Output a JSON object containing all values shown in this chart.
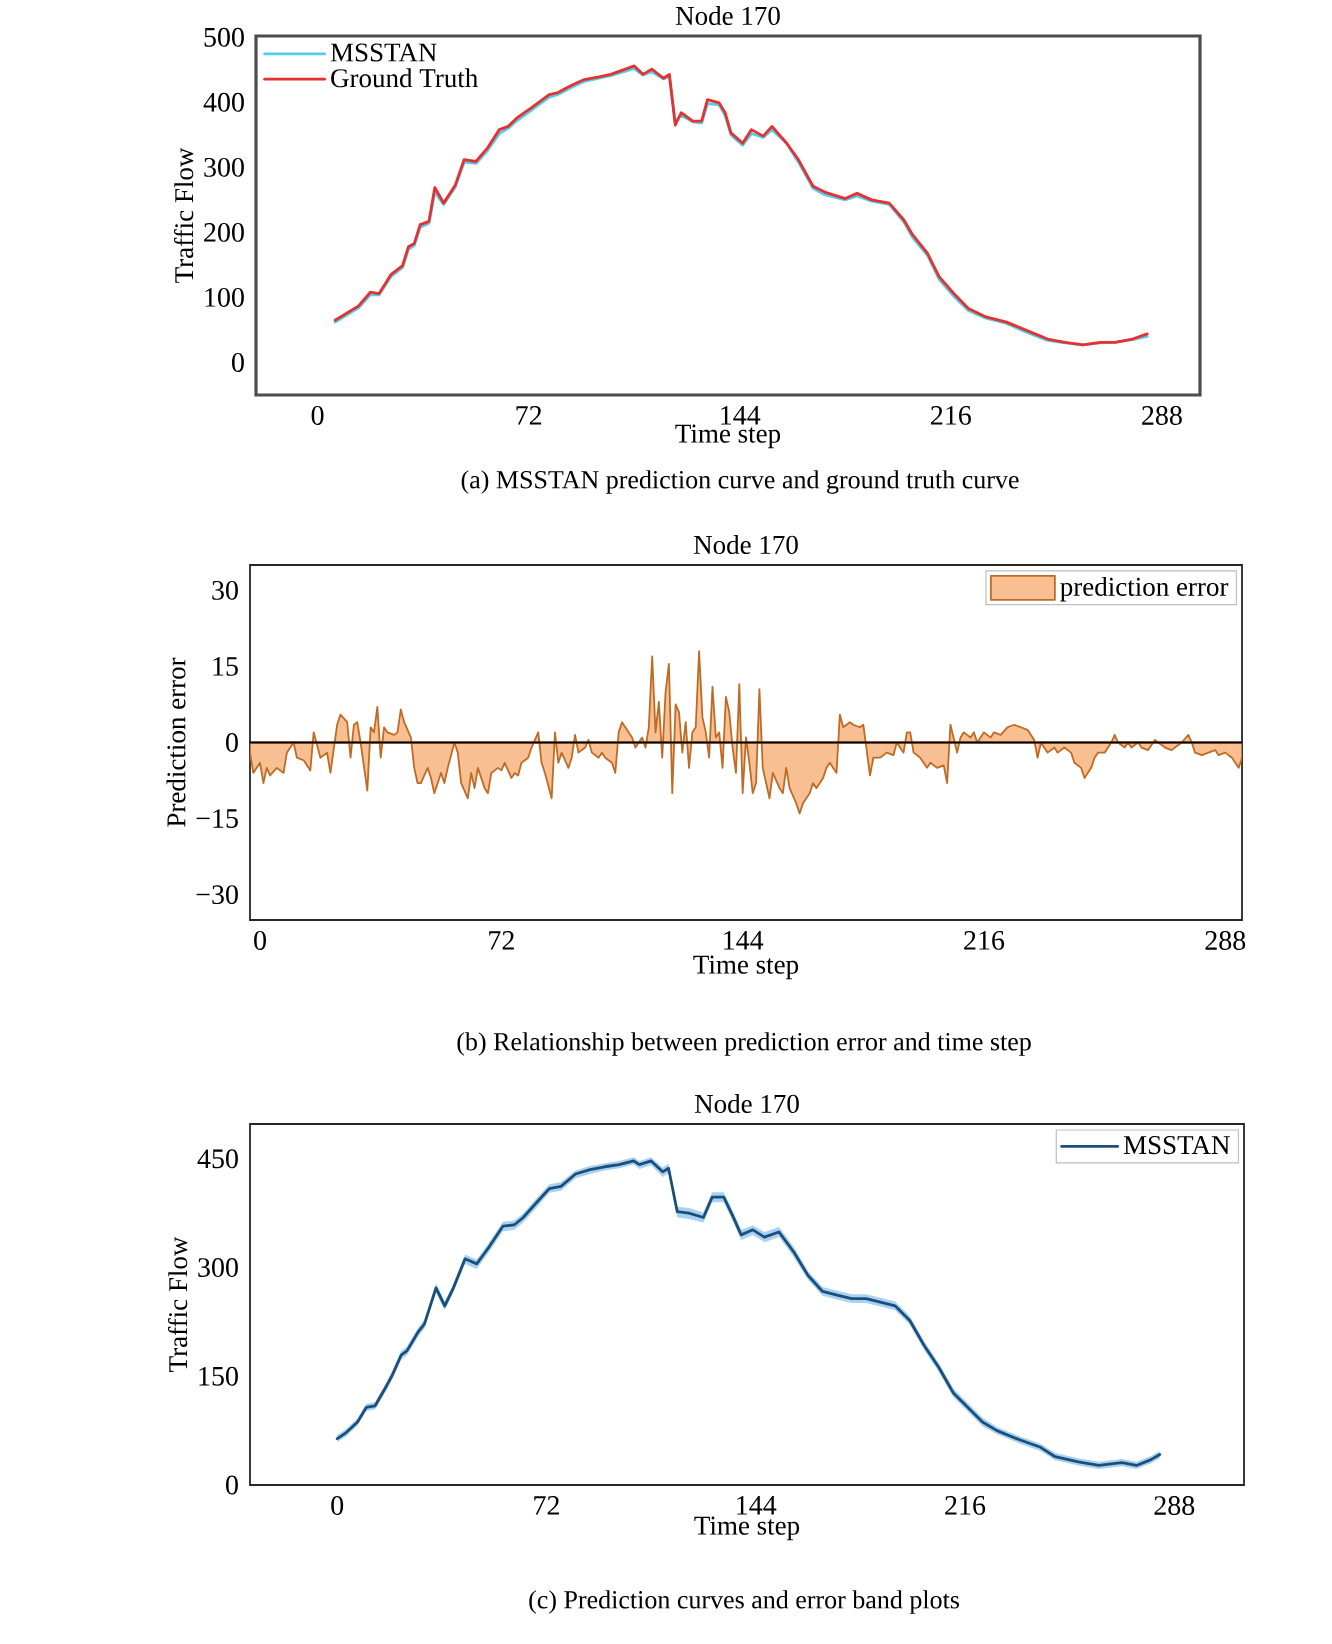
{
  "chart_data": [
    {
      "type": "line",
      "title": "Node 170",
      "xlabel": "Time step",
      "ylabel": "Traffic Flow",
      "annotations": [
        "(a) MSSTAN prediction curve and ground truth curve"
      ],
      "xlim": [
        -21,
        301
      ],
      "ylim": [
        -50,
        502
      ],
      "xticks": [
        0,
        72,
        144,
        216,
        288
      ],
      "yticks": [
        0,
        100,
        200,
        300,
        400,
        500
      ],
      "legend": "top left",
      "x": [
        6,
        14,
        18,
        21,
        25,
        29,
        31,
        33,
        35,
        38,
        40,
        43,
        47,
        50,
        54,
        58,
        62,
        65,
        68,
        73,
        79,
        82,
        87,
        91,
        96,
        100,
        105,
        108,
        111,
        114,
        118,
        120,
        122,
        124,
        128,
        131,
        133,
        137,
        139,
        141,
        145,
        148,
        152,
        155,
        160,
        164,
        169,
        173,
        180,
        184,
        189,
        195,
        200,
        203,
        208,
        212,
        217,
        222,
        228,
        235,
        242,
        249,
        255,
        261,
        267,
        272,
        278,
        283
      ],
      "series": [
        {
          "name": "MSSTAN",
          "color": "#4fcdf2",
          "values": [
            62,
            84,
            104,
            104,
            132,
            146,
            174,
            180,
            208,
            214,
            262,
            243,
            270,
            308,
            306,
            326,
            352,
            360,
            372,
            388,
            408,
            412,
            424,
            432,
            437,
            441,
            448,
            452,
            442,
            447,
            436,
            440,
            370,
            380,
            370,
            368,
            398,
            396,
            380,
            350,
            334,
            352,
            346,
            358,
            337,
            308,
            268,
            258,
            250,
            256,
            248,
            243,
            216,
            192,
            165,
            128,
            102,
            80,
            68,
            60,
            46,
            34,
            30,
            27,
            30,
            31,
            35,
            40
          ]
        },
        {
          "name": "Ground Truth",
          "color": "#e8302c",
          "values": [
            65,
            87,
            108,
            106,
            135,
            149,
            178,
            183,
            212,
            217,
            269,
            245,
            273,
            312,
            309,
            330,
            358,
            363,
            376,
            392,
            412,
            415,
            427,
            435,
            439,
            443,
            451,
            456,
            443,
            451,
            437,
            443,
            365,
            384,
            371,
            371,
            404,
            399,
            384,
            353,
            337,
            358,
            348,
            363,
            337,
            312,
            271,
            262,
            252,
            260,
            250,
            245,
            219,
            196,
            168,
            132,
            106,
            83,
            70,
            62,
            49,
            36,
            31,
            27,
            31,
            31,
            36,
            44
          ]
        }
      ]
    },
    {
      "type": "area",
      "title": "Node 170",
      "xlabel": "Time step",
      "ylabel": "Prediction error",
      "annotations": [
        "(b) Relationship between prediction error and time step"
      ],
      "xlim": [
        -3,
        293
      ],
      "ylim": [
        -35,
        35
      ],
      "xticks": [
        0,
        72,
        144,
        216,
        288
      ],
      "yticks": [
        {
          "value": -30,
          "label": "−30"
        },
        {
          "value": -15,
          "label": "−15"
        },
        0,
        15,
        30
      ],
      "legend": "top right",
      "ref_lines": [
        {
          "axis": "y",
          "value": 0,
          "color": "#000000"
        }
      ],
      "x": [
        -3,
        -2,
        0,
        1,
        2,
        3,
        5,
        7,
        8,
        10,
        11,
        13,
        15,
        16,
        18,
        20,
        21,
        23,
        24,
        26,
        27,
        28,
        29,
        30,
        32,
        33,
        34,
        35,
        36,
        37,
        38,
        40,
        41,
        42,
        43,
        45,
        46,
        47,
        48,
        50,
        51,
        52,
        54,
        55,
        56,
        58,
        59,
        60,
        62,
        63,
        64,
        65,
        67,
        68,
        69,
        71,
        72,
        73,
        75,
        76,
        77,
        78,
        80,
        81,
        83,
        84,
        85,
        87,
        88,
        89,
        90,
        92,
        93,
        94,
        95,
        97,
        98,
        99,
        101,
        102,
        103,
        105,
        106,
        107,
        108,
        110,
        111,
        112,
        114,
        115,
        116,
        117,
        118,
        119,
        120,
        121,
        122,
        123,
        124,
        125,
        126,
        127,
        128,
        129,
        130,
        131,
        132,
        133,
        134,
        135,
        136,
        137,
        138,
        139,
        140,
        141,
        142,
        143,
        144,
        145,
        146,
        147,
        148,
        149,
        150,
        151,
        152,
        153,
        155,
        156,
        157,
        158,
        160,
        161,
        162,
        164,
        165,
        166,
        168,
        169,
        170,
        172,
        173,
        174,
        176,
        177,
        179,
        180,
        182,
        183,
        185,
        187,
        189,
        190,
        192,
        193,
        194,
        195,
        197,
        199,
        200,
        202,
        204,
        205,
        206,
        208,
        209,
        210,
        212,
        213,
        214,
        216,
        218,
        219,
        221,
        223,
        225,
        227,
        229,
        231,
        232,
        233,
        235,
        237,
        238,
        240,
        242,
        243,
        245,
        246,
        248,
        249,
        250,
        252,
        254,
        255,
        256,
        258,
        259,
        260,
        262,
        263,
        265,
        267,
        268,
        270,
        272,
        273,
        275,
        277,
        278,
        279,
        281,
        283,
        285,
        286,
        288,
        290,
        291,
        292,
        293
      ],
      "series": [
        {
          "name": "prediction error",
          "color": "#f8c092",
          "values": [
            -2,
            -6,
            -4,
            -8,
            -5,
            -6.5,
            -5,
            -6,
            -2,
            0,
            -3,
            -3.5,
            -5.5,
            2,
            -3,
            -2,
            -6,
            3.5,
            5.5,
            4,
            -3,
            3.5,
            4,
            0,
            -9.5,
            3,
            2,
            7,
            -3,
            3,
            2,
            1.5,
            2,
            6.5,
            4,
            1,
            -5,
            -8,
            -8,
            -5,
            -7,
            -10,
            -6,
            -8,
            -5,
            0,
            -2,
            -8,
            -11,
            -6,
            -9,
            -5,
            -9,
            -10,
            -6,
            -5,
            -5.5,
            -4,
            -7,
            -6,
            -6.5,
            -4,
            -3,
            -1,
            2,
            -4,
            -6,
            -11,
            2,
            -4,
            -2,
            -5,
            -3,
            1.5,
            -2,
            -1,
            0.5,
            -2,
            -3,
            -2,
            -3,
            -4,
            -6,
            2,
            4,
            2,
            1,
            -1,
            1,
            -1,
            3,
            17,
            2,
            8,
            -3,
            10,
            15.5,
            -10,
            7.5,
            6,
            -2,
            4,
            -5,
            2,
            3,
            18,
            5,
            2,
            -3,
            11,
            1,
            2,
            -5,
            9,
            6,
            -1,
            -6,
            11.5,
            -10,
            1,
            -4,
            -10,
            -8,
            10.5,
            -5,
            -8,
            -11,
            -6,
            -9,
            -10,
            -5,
            -9,
            -12,
            -14,
            -12,
            -10,
            -8,
            -9,
            -7,
            -5,
            -4,
            -6,
            5.5,
            3,
            4,
            3.5,
            3,
            3.5,
            -6.5,
            -3,
            -3,
            -2,
            -2.5,
            0,
            -2,
            2,
            2,
            -2,
            -3,
            -5,
            -4,
            -5,
            -4.5,
            -8,
            3.5,
            -2,
            1,
            2,
            1,
            2,
            0,
            2,
            1,
            2,
            1.5,
            3,
            3.5,
            3,
            2.5,
            0.5,
            -3,
            0,
            -2,
            -1,
            -2,
            -1,
            -2,
            -4,
            -5,
            -7,
            -5,
            -3,
            -2,
            -2,
            0,
            1.5,
            0,
            -1,
            0,
            -1,
            0,
            -1,
            -1.5,
            0.5,
            0,
            -1,
            -1.5,
            -1,
            0,
            1.5,
            0,
            -2,
            -2.5,
            -2,
            -1.5,
            -2.5,
            -2,
            -3,
            -4,
            -5,
            -3
          ]
        }
      ]
    },
    {
      "type": "line",
      "title": "Node 170",
      "xlabel": "Time step",
      "ylabel": "Traffic Flow",
      "annotations": [
        "(c) Prediction curves and error band plots"
      ],
      "xlim": [
        -30,
        312
      ],
      "ylim": [
        0,
        498
      ],
      "xticks": [
        0,
        72,
        144,
        216,
        288
      ],
      "yticks": [
        0,
        150,
        300,
        450
      ],
      "legend": "top right",
      "x": [
        0,
        3,
        7,
        10,
        13,
        17,
        19,
        22,
        24,
        28,
        30,
        34,
        37,
        40,
        44,
        48,
        52,
        57,
        61,
        64,
        68,
        73,
        77,
        82,
        87,
        92,
        97,
        102,
        104,
        108,
        112,
        114,
        117,
        121,
        126,
        129,
        133,
        136,
        139,
        143,
        147,
        152,
        157,
        162,
        167,
        172,
        177,
        182,
        187,
        192,
        197,
        202,
        207,
        212,
        217,
        222,
        227,
        235,
        242,
        247,
        255,
        262,
        270,
        275,
        280,
        283
      ],
      "series": [
        {
          "name": "MSSTAN",
          "color": "#1b4f7a",
          "values": [
            64,
            72,
            87,
            107,
            109,
            137,
            152,
            179,
            185,
            212,
            222,
            272,
            247,
            272,
            312,
            305,
            327,
            357,
            359,
            369,
            387,
            409,
            412,
            429,
            435,
            439,
            442,
            447,
            442,
            447,
            432,
            437,
            377,
            375,
            369,
            397,
            397,
            372,
            345,
            352,
            342,
            349,
            322,
            289,
            267,
            262,
            257,
            257,
            252,
            247,
            227,
            192,
            162,
            127,
            107,
            87,
            75,
            62,
            52,
            39,
            32,
            27,
            31,
            27,
            35,
            42
          ],
          "lower": [
            59,
            67,
            82,
            102,
            104,
            131,
            146,
            173,
            179,
            206,
            216,
            265,
            241,
            266,
            305,
            298,
            320,
            350,
            352,
            362,
            380,
            403,
            406,
            423,
            429,
            434,
            437,
            442,
            436,
            441,
            425,
            430,
            369,
            367,
            362,
            390,
            390,
            365,
            338,
            345,
            335,
            342,
            315,
            283,
            261,
            256,
            251,
            251,
            246,
            241,
            221,
            186,
            156,
            121,
            101,
            81,
            70,
            57,
            47,
            34,
            27,
            22,
            26,
            22,
            30,
            37
          ],
          "upper": [
            69,
            77,
            92,
            112,
            114,
            142,
            158,
            185,
            191,
            218,
            228,
            278,
            253,
            278,
            318,
            311,
            333,
            363,
            365,
            375,
            393,
            415,
            418,
            434,
            440,
            444,
            447,
            452,
            447,
            452,
            438,
            443,
            384,
            382,
            376,
            404,
            404,
            379,
            352,
            358,
            349,
            356,
            329,
            295,
            273,
            268,
            263,
            263,
            258,
            253,
            233,
            198,
            168,
            133,
            113,
            93,
            80,
            67,
            57,
            44,
            37,
            32,
            36,
            32,
            40,
            47
          ]
        }
      ]
    }
  ]
}
